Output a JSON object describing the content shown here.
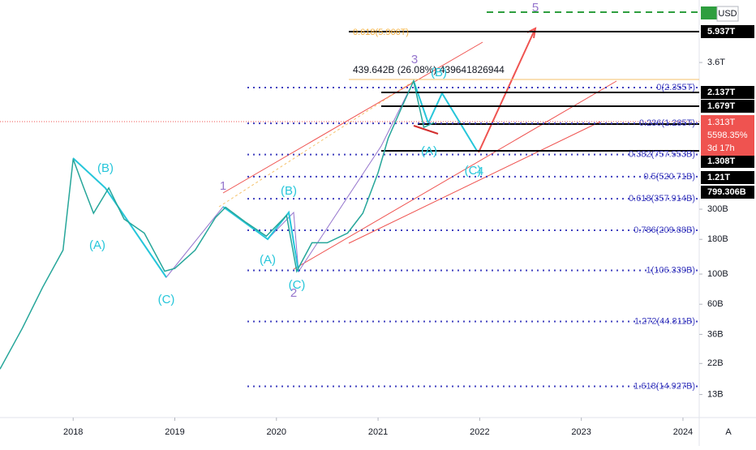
{
  "chart_data": {
    "type": "line",
    "log_scale": true,
    "currency": "USD",
    "corner_label": "A",
    "header_text": "439.642B (26.08%) 439641826944",
    "x": [
      2017.28,
      2017.5,
      2017.7,
      2017.9,
      2018.0,
      2018.1,
      2018.2,
      2018.35,
      2018.5,
      2018.7,
      2018.9,
      2019.0,
      2019.2,
      2019.4,
      2019.5,
      2019.7,
      2019.9,
      2020.1,
      2020.2,
      2020.35,
      2020.5,
      2020.7,
      2020.85,
      2021.0,
      2021.1,
      2021.25,
      2021.35,
      2021.45,
      2021.55
    ],
    "series": [
      {
        "color": "#26a69a",
        "values": [
          20,
          40,
          80,
          150,
          700,
          440,
          280,
          430,
          254,
          200,
          105,
          110,
          150,
          260,
          310,
          240,
          190,
          270,
          105,
          170,
          170,
          200,
          280,
          557,
          1000,
          1800,
          2630,
          1200,
          1300
        ]
      }
    ],
    "xlim": [
      2017.28,
      2024.16
    ],
    "xticks": [
      2018,
      2019,
      2020,
      2021,
      2022,
      2023,
      2024
    ],
    "ylim": [
      8.8,
      10375
    ],
    "yticks": [
      {
        "value": 3600,
        "label": "3.6T"
      },
      {
        "value": 300,
        "label": "300B"
      },
      {
        "value": 180,
        "label": "180B"
      },
      {
        "value": 100,
        "label": "100B"
      },
      {
        "value": 60,
        "label": "60B"
      },
      {
        "value": 36,
        "label": "36B"
      },
      {
        "value": 22,
        "label": "22B"
      },
      {
        "value": 13,
        "label": "13B"
      }
    ],
    "fib_levels": [
      {
        "label": "0(2.355T)",
        "value": 2355
      },
      {
        "label": "0.236(1.285T)",
        "value": 1285
      },
      {
        "label": "0.382(757.553B)",
        "value": 757.553
      },
      {
        "label": "0.5(520.71B)",
        "value": 520.71
      },
      {
        "label": "0.618(357.914B)",
        "value": 357.914
      },
      {
        "label": "0.786(209.88B)",
        "value": 209.88
      },
      {
        "label": "1(106.339B)",
        "value": 106.339
      },
      {
        "label": "1.272(44.811B)",
        "value": 44.811
      },
      {
        "label": "1.618(14.927B)",
        "value": 14.927
      }
    ],
    "top_fib_levels": [
      {
        "label": "0.618(5.966T)",
        "value": 5966
      }
    ],
    "price_tags": [
      "5.937T",
      "2.137T",
      "1.679T",
      "1.308T",
      "1.21T",
      "799.306B"
    ],
    "last_price": {
      "label": "1.313T",
      "change": "5598.35%",
      "countdown": "3d 17h"
    },
    "wave_labels": [
      "(B)",
      "(A)",
      "(C)",
      "1",
      "(B)",
      "(A)",
      "(C)",
      "2",
      "3",
      "(B)",
      "(A)",
      "(C)",
      "4",
      "5"
    ]
  }
}
